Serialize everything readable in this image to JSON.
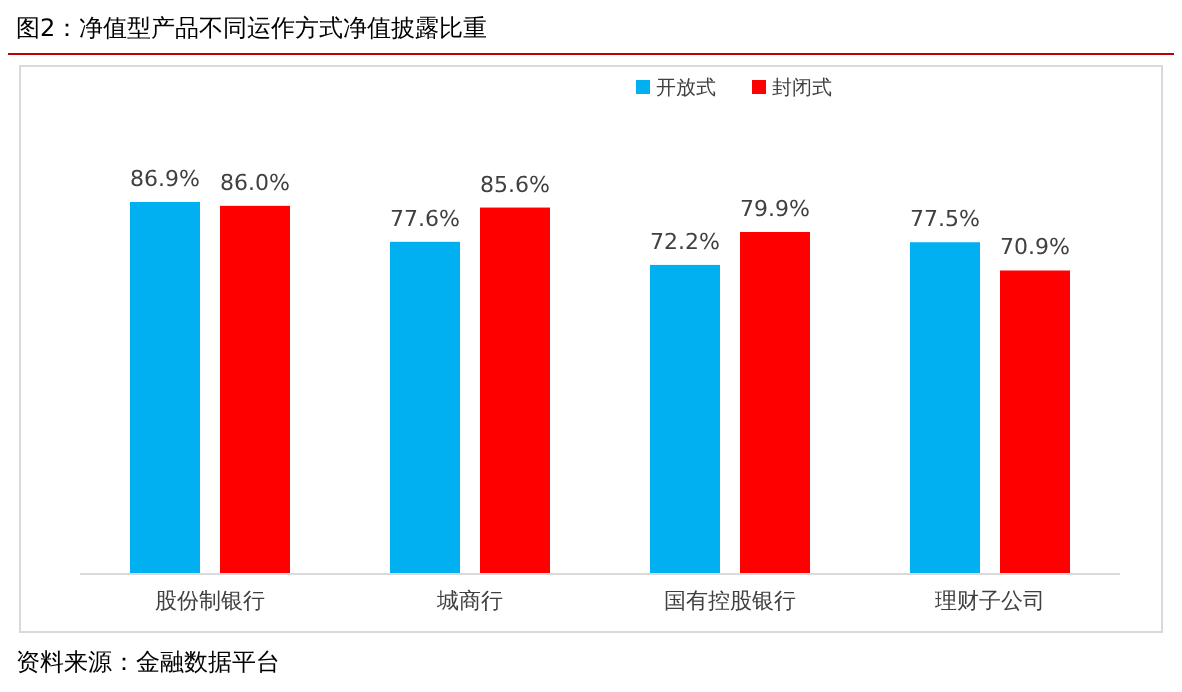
{
  "chart_data": {
    "type": "bar",
    "title": "图2：净值型产品不同运作方式净值披露比重",
    "categories": [
      "股份制银行",
      "城商行",
      "国有控股银行",
      "理财子公司"
    ],
    "series": [
      {
        "name": "开放式",
        "color": "#00b0f0",
        "values": [
          86.9,
          77.6,
          72.2,
          77.5
        ],
        "value_labels": [
          "86.9%",
          "77.6%",
          "72.2%",
          "77.5%"
        ]
      },
      {
        "name": "封闭式",
        "color": "#ff0000",
        "values": [
          86.0,
          85.6,
          79.9,
          70.9
        ],
        "value_labels": [
          "86.0%",
          "85.6%",
          "79.9%",
          "70.9%"
        ]
      }
    ],
    "legend": "top",
    "annotations": [
      "资料来源：金融数据平台"
    ]
  }
}
